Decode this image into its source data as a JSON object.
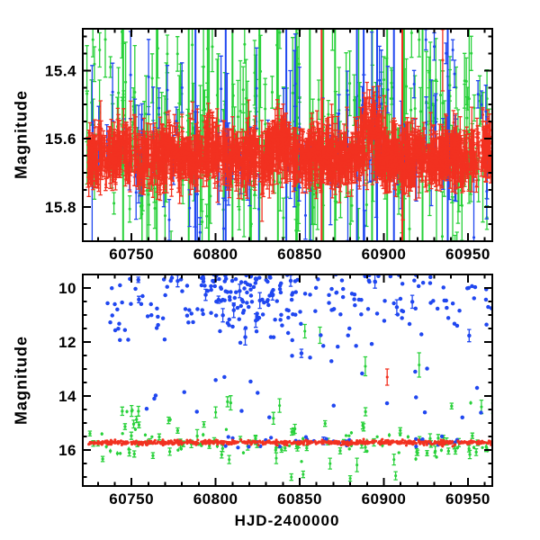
{
  "figure": {
    "background": "#ffffff",
    "axis_color": "#000000",
    "colors": {
      "red": "#f23120",
      "green": "#28d13a",
      "blue": "#2047f0"
    }
  },
  "chart_data": [
    {
      "id": "top",
      "panel": "top",
      "type": "scatter",
      "title": "",
      "xlabel": "",
      "ylabel": "Magnitude",
      "x_range": [
        60721,
        60964.5
      ],
      "y_range": [
        15.278,
        15.9
      ],
      "y_axis": "magnitude-inverted",
      "grid": false,
      "legend": "none",
      "x_ticks_major": [
        60750,
        60800,
        60850,
        60900,
        60950
      ],
      "x_tick_labels": [
        "60750",
        "60800",
        "60850",
        "60900",
        "60950"
      ],
      "x_tick_minor_step": 10,
      "y_ticks_major": [
        15.4,
        15.6,
        15.8
      ],
      "y_tick_labels": [
        "15.4",
        "15.6",
        "15.8"
      ],
      "y_tick_minor_step": 0.05,
      "series": [
        {
          "name": "green-scatter",
          "color": "green",
          "kind": "band",
          "seed": 11,
          "n": 270,
          "x_range": [
            60723,
            60963
          ],
          "mean": 15.6,
          "sigma": 0.14,
          "err": [
            0.03,
            0.07
          ],
          "marker": 3,
          "bumps": []
        },
        {
          "name": "green-tall-errorbars",
          "color": "green",
          "kind": "tall",
          "xs": [
            60745,
            60765,
            60784,
            60796,
            60810,
            60826,
            60837,
            60848,
            60856,
            60864,
            60871,
            60893,
            60902,
            60912,
            60923
          ]
        },
        {
          "name": "green-bright-points",
          "color": "green",
          "kind": "points",
          "pts": [
            [
              60948,
              15.43,
              0.08
            ],
            [
              60727,
              15.31,
              0.05
            ],
            [
              60731,
              15.34,
              0.05
            ],
            [
              60921,
              15.31,
              0.05
            ],
            [
              60943,
              15.45,
              0.06
            ],
            [
              60952,
              15.35,
              0.05
            ]
          ]
        },
        {
          "name": "blue-scatter",
          "color": "blue",
          "kind": "band",
          "seed": 22,
          "n": 92,
          "x_range": [
            60726,
            60962
          ],
          "mean": 15.62,
          "sigma": 0.12,
          "err": [
            0.04,
            0.09
          ],
          "marker": 3,
          "bumps": []
        },
        {
          "name": "blue-tall-errorbars",
          "color": "blue",
          "kind": "tall",
          "xs": [
            60788,
            60806,
            60842,
            60884,
            60888,
            60896,
            60906,
            60938
          ]
        },
        {
          "name": "blue-bright-points",
          "color": "blue",
          "kind": "points",
          "pts": [
            [
              60925,
              15.31,
              0.03
            ],
            [
              60930,
              15.33,
              0.04
            ],
            [
              60937,
              15.35,
              0.03
            ],
            [
              60941,
              15.34,
              0.03
            ],
            [
              60942,
              15.41,
              0.04
            ],
            [
              60956,
              15.47,
              0.04
            ],
            [
              60958,
              15.5,
              0.04
            ],
            [
              60918,
              15.44,
              0.04
            ]
          ]
        },
        {
          "name": "red-tall-errorbars",
          "color": "red",
          "kind": "tall",
          "xs": [
            60863,
            60911
          ]
        },
        {
          "name": "red-dense-band",
          "color": "red",
          "kind": "band",
          "seed": 33,
          "n": 1900,
          "x_range": [
            60724,
            60964
          ],
          "mean": 15.655,
          "sigma": 0.034,
          "err": [
            0.012,
            0.028
          ],
          "marker": 2.6,
          "bumps": [
            {
              "c": 60894,
              "w": 3.5,
              "a": 0.145
            },
            {
              "c": 60889,
              "w": 2,
              "a": 0.06
            },
            {
              "c": 60840,
              "w": 4,
              "a": 0.06
            },
            {
              "c": 60835,
              "w": 2.5,
              "a": 0.05
            },
            {
              "c": 60797,
              "w": 4,
              "a": 0.05
            },
            {
              "c": 60958,
              "w": 4,
              "a": 0.055
            },
            {
              "c": 60745,
              "w": 4,
              "a": 0.045
            },
            {
              "c": 60775,
              "w": 3,
              "a": 0.035
            },
            {
              "c": 60920,
              "w": 3,
              "a": 0.03
            }
          ]
        },
        {
          "name": "red-long-bar-point",
          "color": "red",
          "kind": "points",
          "pts": [
            [
              60935,
              15.37,
              0.09
            ]
          ]
        }
      ]
    },
    {
      "id": "bottom",
      "panel": "bottom",
      "type": "scatter",
      "title": "",
      "xlabel": "HJD-2400000",
      "ylabel": "Magnitude",
      "x_range": [
        60721,
        60964.5
      ],
      "y_range": [
        9.5,
        17.33
      ],
      "y_axis": "magnitude-inverted",
      "grid": false,
      "legend": "none",
      "x_ticks_major": [
        60750,
        60800,
        60850,
        60900,
        60950
      ],
      "x_tick_labels": [
        "60750",
        "60800",
        "60850",
        "60900",
        "60950"
      ],
      "x_tick_minor_step": 10,
      "y_ticks_major": [
        10,
        12,
        14,
        16
      ],
      "y_tick_labels": [
        "10",
        "12",
        "14",
        "16"
      ],
      "y_tick_minor_step": 0.5,
      "series": [
        {
          "name": "green-near-band",
          "color": "green",
          "kind": "band",
          "seed": 41,
          "n": 120,
          "x_range": [
            60725,
            60963
          ],
          "mean": 15.78,
          "sigma": 0.26,
          "err": [
            0.04,
            0.07
          ],
          "marker": 3.2,
          "bumps": []
        },
        {
          "name": "green-cluster-60750",
          "color": "green",
          "kind": "cloud",
          "seed": 42,
          "n": 10,
          "x_range": [
            60744,
            60756
          ],
          "y_range": [
            14.5,
            15.7
          ],
          "err": [
            0.05,
            0.1
          ],
          "marker": 3.2
        },
        {
          "name": "green-mid-scatter",
          "color": "green",
          "kind": "cloud",
          "seed": 43,
          "n": 10,
          "x_range": [
            60760,
            60965
          ],
          "y_range": [
            14.2,
            15.1
          ],
          "err": [
            0.05,
            0.12
          ],
          "marker": 3.2
        },
        {
          "name": "green-outlier-points",
          "color": "green",
          "kind": "points",
          "pts": [
            [
              60853,
              11.6,
              0.25
            ],
            [
              60862,
              11.75,
              0.3
            ],
            [
              60889,
              12.9,
              0.35
            ],
            [
              60921,
              12.85,
              0.45
            ],
            [
              60838,
              14.35,
              0.25
            ],
            [
              60750,
              14.55,
              0.2
            ],
            [
              60800,
              14.6,
              0.2
            ],
            [
              60958,
              14.4,
              0.25
            ],
            [
              60808,
              16.35,
              0.15
            ],
            [
              60836,
              16.3,
              0.2
            ],
            [
              60868,
              16.5,
              0.2
            ],
            [
              60884,
              16.55,
              0.25
            ],
            [
              60906,
              16.35,
              0.2
            ],
            [
              60845,
              17.0,
              0.12
            ],
            [
              60852,
              16.9,
              0.12
            ],
            [
              60880,
              17.05,
              0.1
            ],
            [
              60907,
              16.95,
              0.15
            ],
            [
              60793,
              15.05,
              0.1
            ],
            [
              60772,
              14.9,
              0.12
            ]
          ]
        },
        {
          "name": "blue-bright-cloud",
          "color": "blue",
          "kind": "topheavy",
          "seed": 51,
          "marker": 4.4,
          "err_frac": 0.05,
          "err": [
            0.1,
            0.2
          ],
          "segments": [
            {
              "x_range": [
                60735,
                60790
              ],
              "n": 48,
              "y_min": 9.4,
              "y_spread": 1.5
            },
            {
              "x_range": [
                60790,
                60840
              ],
              "n": 130,
              "y_min": 9.35,
              "y_spread": 1.1
            },
            {
              "x_range": [
                60840,
                60930
              ],
              "n": 92,
              "y_min": 9.4,
              "y_spread": 1.6
            },
            {
              "x_range": [
                60930,
                60968
              ],
              "n": 24,
              "y_min": 9.55,
              "y_spread": 1.3
            }
          ]
        },
        {
          "name": "blue-faint-scatter",
          "color": "blue",
          "kind": "cloud",
          "seed": 52,
          "n": 16,
          "x_range": [
            60755,
            60965
          ],
          "y_range": [
            13.4,
            15.25
          ],
          "err": [
            0,
            0
          ],
          "marker": 4.4
        },
        {
          "name": "blue-near-band",
          "color": "blue",
          "kind": "band",
          "seed": 53,
          "n": 30,
          "x_range": [
            60795,
            60964
          ],
          "mean": 15.68,
          "sigma": 0.1,
          "err": [
            0,
            0.04
          ],
          "marker": 4.2,
          "bumps": []
        },
        {
          "name": "blue-near-band-cluster",
          "color": "blue",
          "kind": "band",
          "seed": 54,
          "n": 14,
          "x_range": [
            60915,
            60946
          ],
          "mean": 15.66,
          "sigma": 0.09,
          "err": [
            0,
            0.04
          ],
          "marker": 4.2,
          "bumps": []
        },
        {
          "name": "red-quiescent-band",
          "color": "red",
          "kind": "band",
          "seed": 61,
          "n": 800,
          "x_range": [
            60724,
            60964
          ],
          "mean": 15.72,
          "sigma": 0.04,
          "err": [
            0.005,
            0.02
          ],
          "marker": 3,
          "bumps": [
            {
              "c": 60894,
              "w": 3,
              "a": 0.06
            }
          ]
        },
        {
          "name": "red-outlier-point",
          "color": "red",
          "kind": "points",
          "pts": [
            [
              60902,
              13.3,
              0.3
            ]
          ]
        }
      ]
    }
  ]
}
